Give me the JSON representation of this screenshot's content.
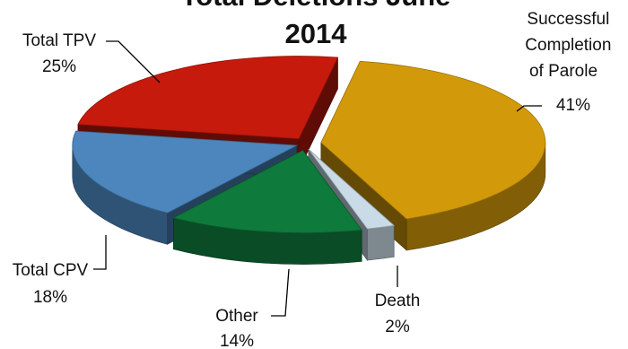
{
  "chart_data": {
    "type": "pie",
    "style": "3d-exploded",
    "title_lines": [
      "Total Deletions June",
      "2014"
    ],
    "slices": [
      {
        "label_lines": [
          "Successful",
          "Completion",
          "of Parole"
        ],
        "value": 41,
        "pct_label": "41%",
        "color": "#d29a0a"
      },
      {
        "label_lines": [
          "Death"
        ],
        "value": 2,
        "pct_label": "2%",
        "color": "#c9dbe7"
      },
      {
        "label_lines": [
          "Other"
        ],
        "value": 14,
        "pct_label": "14%",
        "color": "#0e7a3b"
      },
      {
        "label_lines": [
          "Total CPV"
        ],
        "value": 18,
        "pct_label": "18%",
        "color": "#4c86bd"
      },
      {
        "label_lines": [
          "Total TPV"
        ],
        "value": 25,
        "pct_label": "25%",
        "color": "#c61a0c"
      }
    ],
    "legend": "none"
  }
}
